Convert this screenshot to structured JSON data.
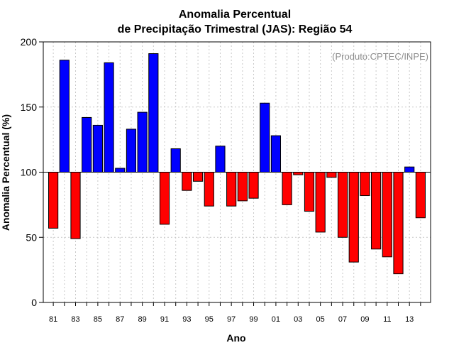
{
  "chart_data": {
    "type": "bar",
    "title_line1": "Anomalia Percentual",
    "title_line2": "de Precipitação Trimestral (JAS): Região 54",
    "xlabel": "Ano",
    "ylabel": "Anomalia Percentual (%)",
    "annotation": "(Produto:CPTEC/INPE)",
    "baseline": 100,
    "ylim": [
      0,
      200
    ],
    "yticks": [
      0,
      50,
      100,
      150,
      200
    ],
    "colors": {
      "above": "#0000ff",
      "below": "#ff0000",
      "edge": "#000000"
    },
    "categories": [
      "81",
      "82",
      "83",
      "84",
      "85",
      "86",
      "87",
      "88",
      "89",
      "90",
      "91",
      "92",
      "93",
      "94",
      "95",
      "96",
      "97",
      "98",
      "99",
      "00",
      "01",
      "02",
      "03",
      "04",
      "05",
      "06",
      "07",
      "08",
      "09",
      "10",
      "11",
      "12",
      "13",
      "14"
    ],
    "tick_labels": [
      "81",
      "83",
      "85",
      "87",
      "89",
      "91",
      "93",
      "95",
      "97",
      "99",
      "01",
      "03",
      "05",
      "07",
      "09",
      "11",
      "13"
    ],
    "values": [
      57,
      186,
      49,
      142,
      136,
      184,
      103,
      133,
      146,
      191,
      60,
      118,
      86,
      93,
      74,
      120,
      74,
      78,
      80,
      153,
      128,
      75,
      98,
      70,
      54,
      96,
      50,
      31,
      82,
      41,
      35,
      22,
      104,
      65
    ]
  }
}
